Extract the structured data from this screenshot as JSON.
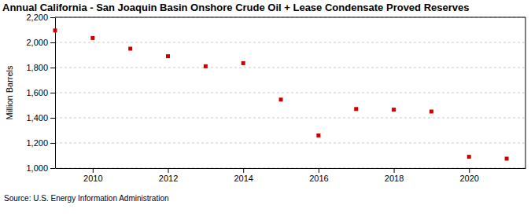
{
  "chart_data": {
    "type": "scatter",
    "title": "Annual California - San Joaquin Basin Onshore Crude Oil + Lease Condensate Proved Reserves",
    "y_label": "Million Barrels",
    "source": "Source: U.S. Energy Information Administration",
    "x": [
      2009,
      2010,
      2011,
      2012,
      2013,
      2014,
      2015,
      2016,
      2017,
      2018,
      2019,
      2020,
      2021
    ],
    "values": [
      2095,
      2035,
      1950,
      1890,
      1810,
      1835,
      1545,
      1260,
      1470,
      1465,
      1450,
      1090,
      1075
    ],
    "color": "#cc0000",
    "marker": "square",
    "xlim": [
      2009,
      2021.5
    ],
    "xticks": [
      2010,
      2012,
      2014,
      2016,
      2018,
      2020
    ],
    "ylim": [
      1000,
      2200
    ],
    "yticks": [
      {
        "value": 1000,
        "label": "1,000"
      },
      {
        "value": 1200,
        "label": "1,200"
      },
      {
        "value": 1400,
        "label": "1,400"
      },
      {
        "value": 1600,
        "label": "1,600"
      },
      {
        "value": 1800,
        "label": "1,800"
      },
      {
        "value": 2000,
        "label": "2,000"
      },
      {
        "value": 2200,
        "label": "2,200"
      }
    ],
    "grid": true
  }
}
